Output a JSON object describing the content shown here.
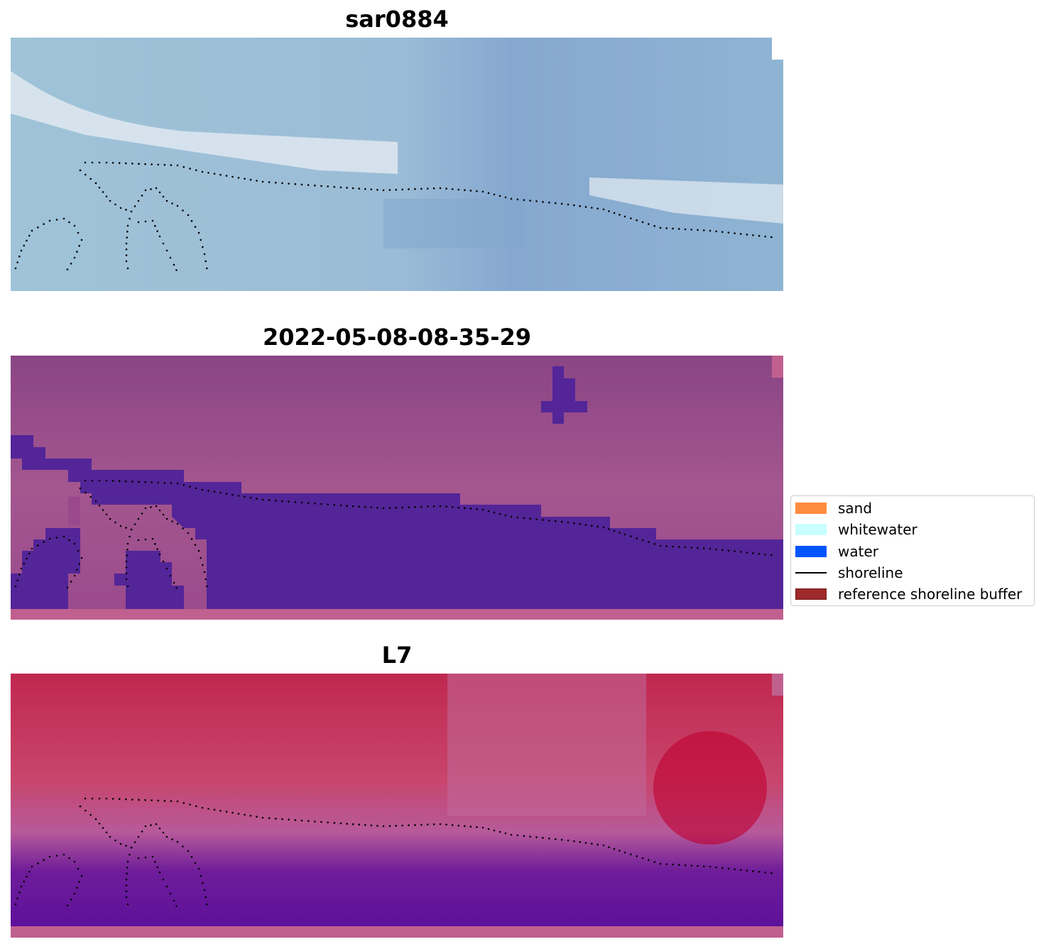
{
  "panels": [
    {
      "title": "sar0884"
    },
    {
      "title": "2022-05-08-08-35-29"
    },
    {
      "title": "L7"
    }
  ],
  "legend": {
    "placement": "center-right",
    "items": [
      {
        "label": "sand",
        "color": "#ff8c3f",
        "kind": "patch"
      },
      {
        "label": "whitewater",
        "color": "#c8ffff",
        "kind": "patch"
      },
      {
        "label": "water",
        "color": "#0055ff",
        "kind": "patch"
      },
      {
        "label": "shoreline",
        "color": "#000000",
        "kind": "line"
      },
      {
        "label": "reference shoreline buffer",
        "color": "#9e2a2b",
        "kind": "patch"
      }
    ]
  },
  "colors": {
    "water_mask": "#532598",
    "buffer_strip": "#c0608f"
  }
}
